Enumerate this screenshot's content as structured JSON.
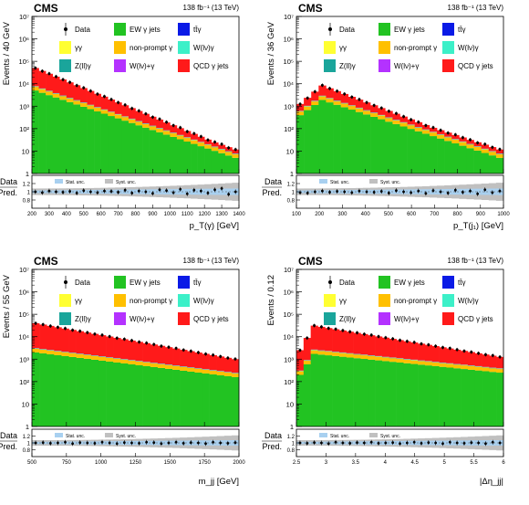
{
  "colors": {
    "ew": "#22c322",
    "nonprompt": "#ffc000",
    "qcd": "#ff1a1a",
    "wgamma": "#3cf0c8",
    "zgamma_jets": "#1aa59b",
    "wjets": "#b432ff",
    "ttgamma": "#0a1ae6",
    "gammagamma": "#ffff32",
    "stat_unc": "#a8d0f0",
    "syst_unc": "#c0c0c0"
  },
  "legend_labels": {
    "data": "Data",
    "ew": "EW γ jets",
    "ttgamma": "tt̄γ",
    "gammagamma": "γγ",
    "nonprompt": "non-prompt γ",
    "wgamma": "W(lν)γ",
    "zgamma": "Z(ll)γ",
    "wjets": "W(lν)+γ",
    "qcd": "QCD γ jets"
  },
  "ratio_legend": {
    "stat": "Stat. unc.",
    "syst": "Syst. unc."
  },
  "chart_data": [
    {
      "type": "bar",
      "cms_label": "CMS",
      "lumi_label": "138 fb⁻¹ (13 TeV)",
      "ylabel": "Events / 40 GeV",
      "xlabel": "p_T(γ) [GeV]",
      "ratio_label_top": "Data",
      "ratio_label_bottom": "Pred.",
      "log_y": true,
      "ylim_exp": [
        0,
        7
      ],
      "y_ticks": [
        "1",
        "10",
        "10²",
        "10³",
        "10⁴",
        "10⁵",
        "10⁶",
        "10⁷"
      ],
      "x_range": [
        200,
        1400
      ],
      "x_ticks": [
        "200",
        "300",
        "400",
        "500",
        "600",
        "700",
        "800",
        "900",
        "1000",
        "1100",
        "1200",
        "1300",
        "1400"
      ],
      "ratio_ticks": [
        "0.8",
        "1",
        "1.2"
      ],
      "ratio_range": [
        0.6,
        1.4
      ],
      "n_bins": 30,
      "ew_log_start": 3.7,
      "ew_log_end": 0.7,
      "total_log_start": 4.7,
      "total_log_end": 1.0,
      "other_start": 300,
      "peak_bin": 0,
      "rise_bins": 0,
      "turn_on_bins": 0,
      "ratio_points": [
        1.0,
        0.98,
        1.02,
        1.0,
        0.99,
        1.01,
        0.97,
        1.03,
        1.0,
        0.98,
        1.02,
        1.01,
        0.99,
        1.04,
        0.97,
        1.02,
        1.0,
        0.96,
        1.05,
        1.03,
        0.98,
        1.06,
        0.95,
        1.04,
        1.02,
        0.97,
        1.05,
        1.08,
        0.94,
        1.0
      ]
    },
    {
      "type": "bar",
      "cms_label": "CMS",
      "lumi_label": "138 fb⁻¹ (13 TeV)",
      "ylabel": "Events / 36 GeV",
      "xlabel": "p_T(j₁) [GeV]",
      "ratio_label_top": "Data",
      "ratio_label_bottom": "Pred.",
      "log_y": true,
      "ylim_exp": [
        0,
        7
      ],
      "y_ticks": [
        "1",
        "10",
        "10²",
        "10³",
        "10⁴",
        "10⁵",
        "10⁶",
        "10⁷"
      ],
      "x_range": [
        50,
        1000
      ],
      "x_ticks": [
        "100",
        "200",
        "300",
        "400",
        "500",
        "600",
        "700",
        "800",
        "900",
        "1000"
      ],
      "ratio_ticks": [
        "0.8",
        "1",
        "1.2"
      ],
      "ratio_range": [
        0.6,
        1.4
      ],
      "n_bins": 28,
      "ew_log_start": 3.6,
      "ew_log_end": 0.7,
      "total_log_start": 4.3,
      "total_log_end": 0.9,
      "other_start": 280,
      "peak_bin": 3,
      "rise_bins": 3,
      "turn_on_bins": 0,
      "ratio_points": [
        0.98,
        0.97,
        1.0,
        1.02,
        0.99,
        1.01,
        1.0,
        0.98,
        1.02,
        1.0,
        0.99,
        1.01,
        0.97,
        1.03,
        1.0,
        0.98,
        1.02,
        0.96,
        1.03,
        1.0,
        0.97,
        1.04,
        0.99,
        1.02,
        0.95,
        1.05,
        0.98,
        1.02
      ]
    },
    {
      "type": "bar",
      "cms_label": "CMS",
      "lumi_label": "138 fb⁻¹ (13 TeV)",
      "ylabel": "Events / 55 GeV",
      "xlabel": "m_jj [GeV]",
      "ratio_label_top": "Data",
      "ratio_label_bottom": "Pred.",
      "log_y": true,
      "ylim_exp": [
        0,
        7
      ],
      "y_ticks": [
        "1",
        "10",
        "10²",
        "10³",
        "10⁴",
        "10⁵",
        "10⁶",
        "10⁷"
      ],
      "x_range": [
        500,
        2000
      ],
      "x_ticks": [
        "500",
        "750",
        "1000",
        "1250",
        "1500",
        "1750",
        "2000"
      ],
      "ratio_ticks": [
        "0.8",
        "1",
        "1.2"
      ],
      "ratio_range": [
        0.6,
        1.4
      ],
      "n_bins": 28,
      "ew_log_start": 3.3,
      "ew_log_end": 2.2,
      "total_log_start": 4.6,
      "total_log_end": 3.0,
      "other_start": 700,
      "peak_bin": 0,
      "rise_bins": 0,
      "turn_on_bins": 0,
      "ratio_points": [
        1.0,
        1.01,
        0.99,
        1.0,
        1.02,
        0.98,
        1.01,
        1.0,
        0.99,
        1.02,
        1.0,
        0.98,
        1.01,
        1.0,
        0.99,
        1.02,
        1.01,
        0.98,
        1.0,
        1.02,
        0.99,
        1.01,
        1.0,
        0.98,
        1.02,
        1.0,
        0.99,
        1.01
      ]
    },
    {
      "type": "bar",
      "cms_label": "CMS",
      "lumi_label": "138 fb⁻¹ (13 TeV)",
      "ylabel": "Events / 0.12",
      "xlabel": "|Δη_jj|",
      "ratio_label_top": "Data",
      "ratio_label_bottom": "Pred.",
      "log_y": true,
      "ylim_exp": [
        0,
        7
      ],
      "y_ticks": [
        "1",
        "10",
        "10²",
        "10³",
        "10⁴",
        "10⁵",
        "10⁶",
        "10⁷"
      ],
      "x_range": [
        2.5,
        6
      ],
      "x_ticks": [
        "2.5",
        "3",
        "3.5",
        "4",
        "4.5",
        "5",
        "5.5",
        "6"
      ],
      "ratio_ticks": [
        "0.8",
        "1",
        "1.2"
      ],
      "ratio_range": [
        0.6,
        1.4
      ],
      "n_bins": 29,
      "ew_log_start": 3.3,
      "ew_log_end": 2.4,
      "total_log_start": 4.6,
      "total_log_end": 3.1,
      "other_start": 700,
      "peak_bin": 2,
      "rise_bins": 2,
      "turn_on_bins": 0,
      "ratio_points": [
        1.0,
        0.99,
        1.01,
        1.0,
        0.98,
        1.02,
        1.0,
        0.99,
        1.01,
        1.0,
        1.02,
        0.99,
        1.0,
        1.01,
        0.98,
        1.0,
        1.02,
        0.99,
        1.01,
        1.0,
        0.98,
        1.02,
        1.0,
        0.99,
        1.01,
        1.0,
        0.98,
        1.02,
        1.0
      ]
    }
  ]
}
